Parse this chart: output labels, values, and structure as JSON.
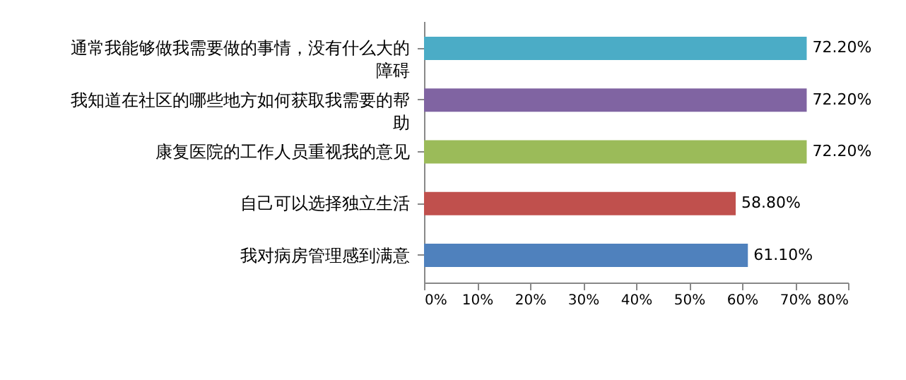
{
  "chart_data": {
    "type": "bar",
    "orientation": "horizontal",
    "categories": [
      "通常我能够做我需要做的事情，没有什么大的障碍",
      "我知道在社区的哪些地方如何获取我需要的帮助",
      "康复医院的工作人员重视我的意见",
      "自己可以选择独立生活",
      "我对病房管理感到满意"
    ],
    "values": [
      72.2,
      72.2,
      72.2,
      58.8,
      61.1
    ],
    "colors": [
      "#4bacc6",
      "#8064a2",
      "#9bbb59",
      "#c0504d",
      "#4f81bd"
    ],
    "value_labels": [
      "72.20%",
      "72.20%",
      "72.20%",
      "58.80%",
      "61.10%"
    ],
    "xlim": [
      0,
      80
    ],
    "xticks": [
      {
        "value": 0,
        "label": "0%"
      },
      {
        "value": 10,
        "label": "10%"
      },
      {
        "value": 20,
        "label": "20%"
      },
      {
        "value": 30,
        "label": "30%"
      },
      {
        "value": 40,
        "label": "40%"
      },
      {
        "value": 50,
        "label": "50%"
      },
      {
        "value": 60,
        "label": "60%"
      },
      {
        "value": 70,
        "label": "70%"
      },
      {
        "value": 80,
        "label": "80%"
      }
    ],
    "grid": false
  }
}
